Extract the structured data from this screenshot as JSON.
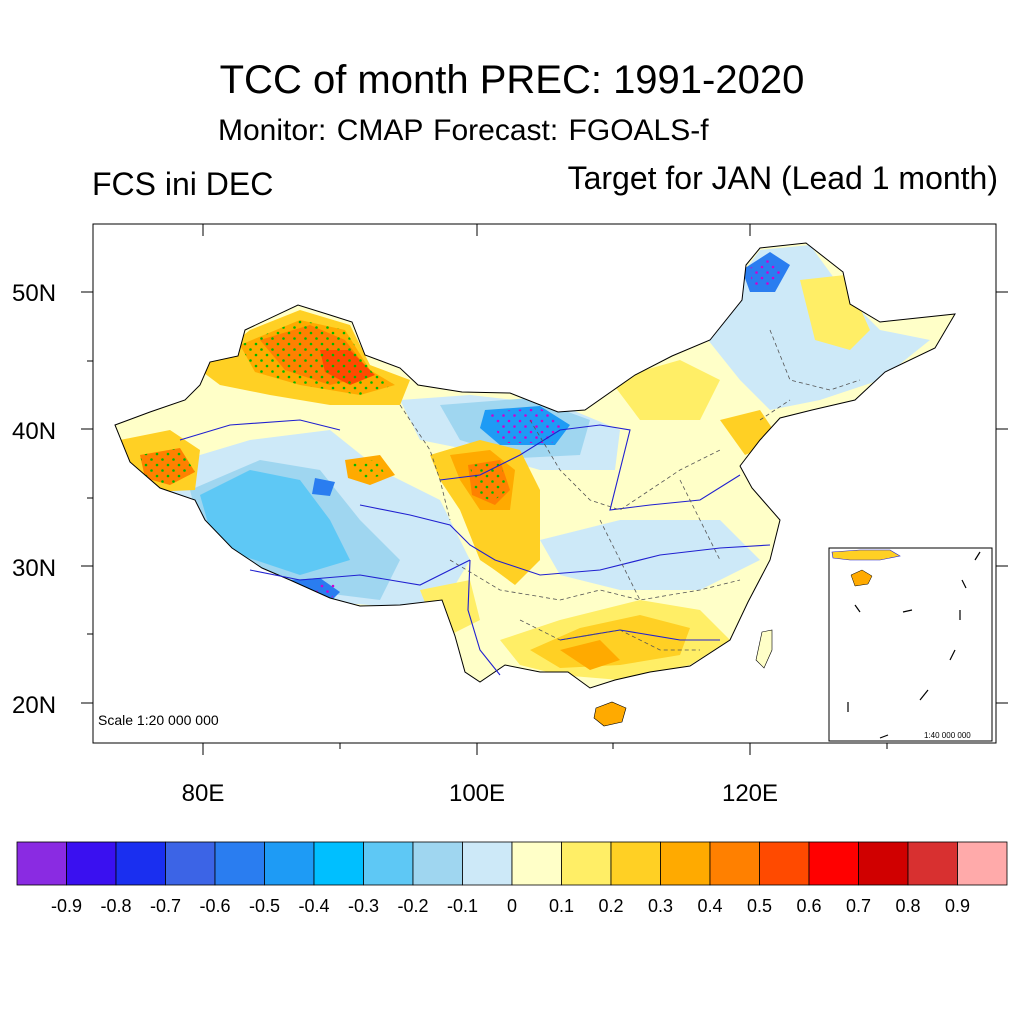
{
  "title": "TCC of month PREC: 1991-2020",
  "subtitle": "Monitor: CMAP   Forecast: FGOALS-f",
  "left_label": "FCS ini DEC",
  "right_label": "Target for JAN (Lead 1 month)",
  "scale_main": "Scale 1:20 000 000",
  "scale_inset": "1:40 000 000",
  "y_ticks": [
    "50N",
    "40N",
    "30N",
    "20N"
  ],
  "x_ticks": [
    "80E",
    "100E",
    "120E"
  ],
  "colorbar": {
    "colors": [
      "#8a2be2",
      "#3a10f0",
      "#1a2ff0",
      "#3c64e6",
      "#2a7df0",
      "#1e9bf5",
      "#00bfff",
      "#5ec8f5",
      "#9fd6f0",
      "#cde9f8",
      "#ffffc8",
      "#ffee66",
      "#ffd024",
      "#ffaa00",
      "#ff8000",
      "#ff4a00",
      "#ff0000",
      "#d00000",
      "#d83030",
      "#ffaaaa"
    ],
    "labels": [
      "-0.9",
      "-0.8",
      "-0.7",
      "-0.6",
      "-0.5",
      "-0.4",
      "-0.3",
      "-0.2",
      "-0.1",
      "0",
      "0.1",
      "0.2",
      "0.3",
      "0.4",
      "0.5",
      "0.6",
      "0.7",
      "0.8",
      "0.9"
    ]
  },
  "regions": [
    {
      "name": "xinjiang-north",
      "color": "#ff8000"
    },
    {
      "name": "xinjiang-core",
      "color": "#ff4a00"
    },
    {
      "name": "tarim-west",
      "color": "#ff8000"
    },
    {
      "name": "tibet",
      "color": "#5ec8f5"
    },
    {
      "name": "inner-mongolia",
      "color": "#1e9bf5"
    },
    {
      "name": "qinghai-east",
      "color": "#ff8000"
    },
    {
      "name": "sichuan",
      "color": "#ffd024"
    },
    {
      "name": "south-china",
      "color": "#ffd024"
    },
    {
      "name": "hainan",
      "color": "#ffaa00"
    },
    {
      "name": "northeast-yellow",
      "color": "#ffee66"
    },
    {
      "name": "heilongjiang-blue",
      "color": "#2a7df0"
    }
  ]
}
